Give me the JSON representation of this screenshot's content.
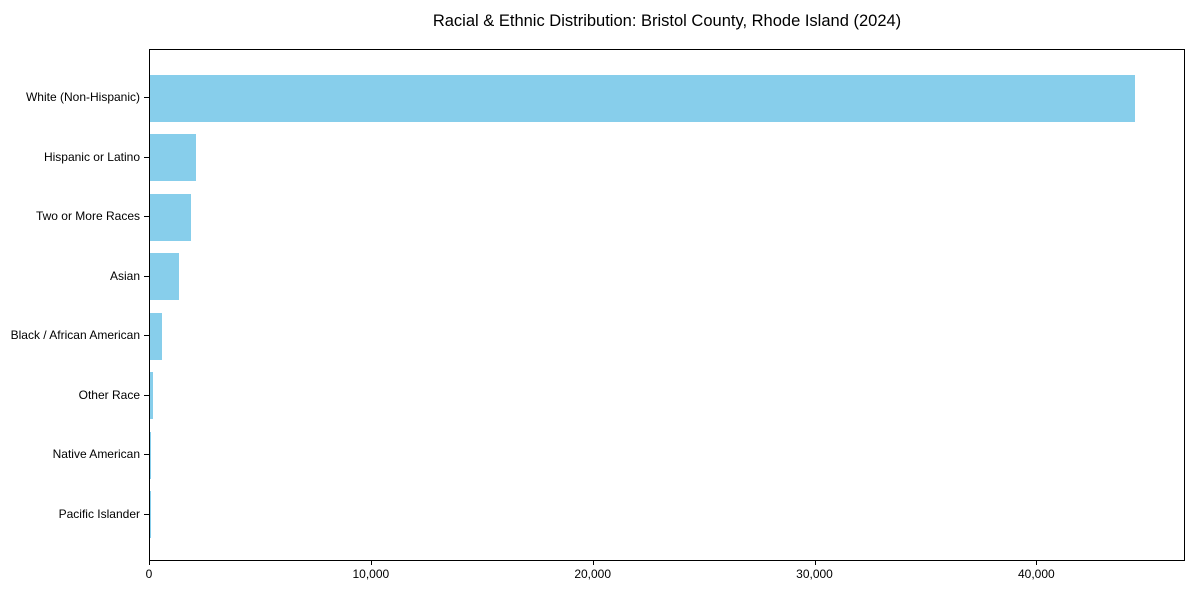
{
  "chart_data": {
    "type": "bar",
    "orientation": "horizontal",
    "title": "Racial & Ethnic Distribution: Bristol County, Rhode Island (2024)",
    "categories": [
      "White (Non-Hispanic)",
      "Hispanic or Latino",
      "Two or More Races",
      "Asian",
      "Black / African American",
      "Other Race",
      "Native American",
      "Pacific Islander"
    ],
    "values": [
      44500,
      2100,
      1850,
      1300,
      550,
      150,
      40,
      10
    ],
    "xlabel": "",
    "ylabel": "",
    "xlim": [
      0,
      46700
    ],
    "x_ticks": [
      0,
      10000,
      20000,
      30000,
      40000
    ],
    "x_tick_labels": [
      "0",
      "10,000",
      "20,000",
      "30,000",
      "40,000"
    ],
    "bar_color": "#87CEEB",
    "grid": false,
    "legend": false,
    "plot_border": true
  }
}
